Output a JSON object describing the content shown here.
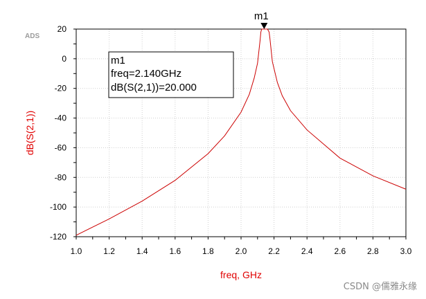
{
  "ads_label": "ADS",
  "watermark": "CSDN @儒雅永缘",
  "chart_data": {
    "type": "line",
    "xlabel": "freq, GHz",
    "ylabel": "dB(S(2,1))",
    "xlim": [
      1.0,
      3.0
    ],
    "ylim": [
      -120,
      20
    ],
    "x_ticks": [
      "1.0",
      "1.2",
      "1.4",
      "1.6",
      "1.8",
      "2.0",
      "2.2",
      "2.4",
      "2.6",
      "2.8",
      "3.0"
    ],
    "y_ticks": [
      "20",
      "0",
      "-20",
      "-40",
      "-60",
      "-80",
      "-100",
      "-120"
    ],
    "grid": true,
    "series": [
      {
        "color": "#cc0000",
        "x": [
          1.0,
          1.2,
          1.4,
          1.6,
          1.8,
          1.9,
          2.0,
          2.05,
          2.08,
          2.1,
          2.115,
          2.12,
          2.125,
          2.14,
          2.16,
          2.17,
          2.175,
          2.19,
          2.22,
          2.25,
          2.3,
          2.4,
          2.6,
          2.8,
          3.0
        ],
        "y": [
          -119,
          -108,
          -96,
          -82,
          -64,
          -52,
          -36,
          -24,
          -13,
          -3,
          12,
          18,
          20,
          20,
          20,
          18,
          14,
          -2,
          -16,
          -25,
          -35,
          -48,
          -67,
          -79,
          -88
        ]
      }
    ],
    "marker": {
      "name": "m1",
      "x": 2.14,
      "y": 20.0,
      "lines": [
        "m1",
        "freq=2.140GHz",
        "dB(S(2,1))=20.000"
      ]
    }
  }
}
